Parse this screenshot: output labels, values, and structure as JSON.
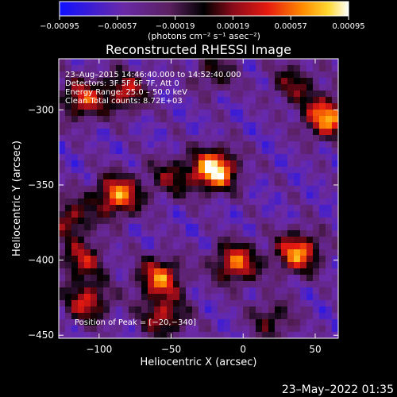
{
  "chart_data": {
    "type": "heatmap",
    "title": "Reconstructed RHESSI Image",
    "xlabel": "Heliocentric X (arcsec)",
    "ylabel": "Heliocentric Y (arcsec)",
    "xlim": [
      -128,
      66
    ],
    "ylim": [
      -452,
      -266
    ],
    "x_ticks": [
      -100,
      -50,
      0,
      50
    ],
    "y_ticks": [
      -300,
      -350,
      -400,
      -450
    ],
    "x_tick_labels": [
      "−100",
      "−50",
      "0",
      "50"
    ],
    "y_tick_labels": [
      "−300",
      "−350",
      "−400",
      "−450"
    ],
    "colorbar": {
      "range": [
        -0.00095,
        0.00095
      ],
      "ticks": [
        -0.00095,
        -0.00057,
        -0.00019,
        0.00019,
        0.00057,
        0.00095
      ],
      "tick_labels": [
        "−0.00095",
        "−0.00057",
        "−0.00019",
        "0.00019",
        "0.00057",
        "0.00095"
      ],
      "units_label": "(photons cm⁻² s⁻¹ asec⁻²)"
    },
    "info": {
      "time": "23–Aug–2015 14:46:40.000 to 14:52:40.000",
      "detectors": "Detectors: 3F 5F 6F 7F, Att 0",
      "energy": "Energy Range: 25.0 – 50.0 keV",
      "method": "Clean      Total counts: 8.72E+03"
    },
    "peak_label": "Position of Peak = [−20,−340]",
    "peak": [
      -20,
      -340
    ],
    "sources": [
      {
        "x": -20,
        "y": -340,
        "strength": 1.0
      },
      {
        "x": -87,
        "y": -357,
        "strength": 0.8
      },
      {
        "x": 58,
        "y": -305,
        "strength": 0.82
      },
      {
        "x": 38,
        "y": -395,
        "strength": 0.78
      },
      {
        "x": -5,
        "y": -402,
        "strength": 0.72
      },
      {
        "x": -58,
        "y": -412,
        "strength": 0.72
      },
      {
        "x": -108,
        "y": -428,
        "strength": 0.6
      },
      {
        "x": -55,
        "y": -438,
        "strength": 0.55
      },
      {
        "x": -112,
        "y": -293,
        "strength": 0.62
      },
      {
        "x": -82,
        "y": -288,
        "strength": 0.55
      },
      {
        "x": -120,
        "y": -372,
        "strength": 0.5
      },
      {
        "x": -112,
        "y": -400,
        "strength": 0.52
      },
      {
        "x": -50,
        "y": -345,
        "strength": 0.4
      },
      {
        "x": 35,
        "y": -283,
        "strength": 0.42
      },
      {
        "x": 20,
        "y": -440,
        "strength": 0.38
      },
      {
        "x": -20,
        "y": -275,
        "strength": 0.35
      }
    ]
  },
  "footer_timestamp": "23–May–2022 01:35"
}
